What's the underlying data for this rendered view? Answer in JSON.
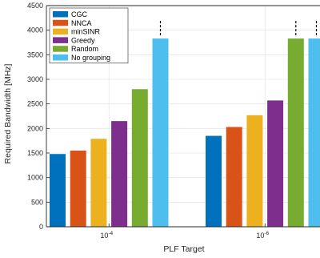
{
  "chart_data": {
    "type": "bar",
    "categories": [
      "10",
      "10"
    ],
    "category_exponents": [
      "-4",
      "-6"
    ],
    "xlabel": "PLF Target",
    "ylabel": "Required Bandwidth [MHz]",
    "ylim": [
      0,
      4500
    ],
    "yticks": [
      0,
      500,
      1000,
      1500,
      2000,
      2500,
      3000,
      3500,
      4000,
      4500
    ],
    "grid": true,
    "legend_position": "top-left",
    "series": [
      {
        "name": "CGC",
        "color": "#0072BD",
        "values": [
          1480,
          1850
        ]
      },
      {
        "name": "NNCA",
        "color": "#D95319",
        "values": [
          1550,
          2030
        ]
      },
      {
        "name": "minSINR",
        "color": "#EDB120",
        "values": [
          1790,
          2270
        ]
      },
      {
        "name": "Greedy",
        "color": "#7E2F8E",
        "values": [
          2150,
          2570
        ]
      },
      {
        "name": "Random",
        "color": "#77AC30",
        "values": [
          2800,
          3830
        ]
      },
      {
        "name": "No grouping",
        "color": "#4DBEEE",
        "values": [
          3830,
          3830
        ]
      }
    ],
    "truncated_bars": [
      {
        "series": "No grouping",
        "category_index": 0
      },
      {
        "series": "Random",
        "category_index": 1
      },
      {
        "series": "No grouping",
        "category_index": 1
      }
    ]
  }
}
